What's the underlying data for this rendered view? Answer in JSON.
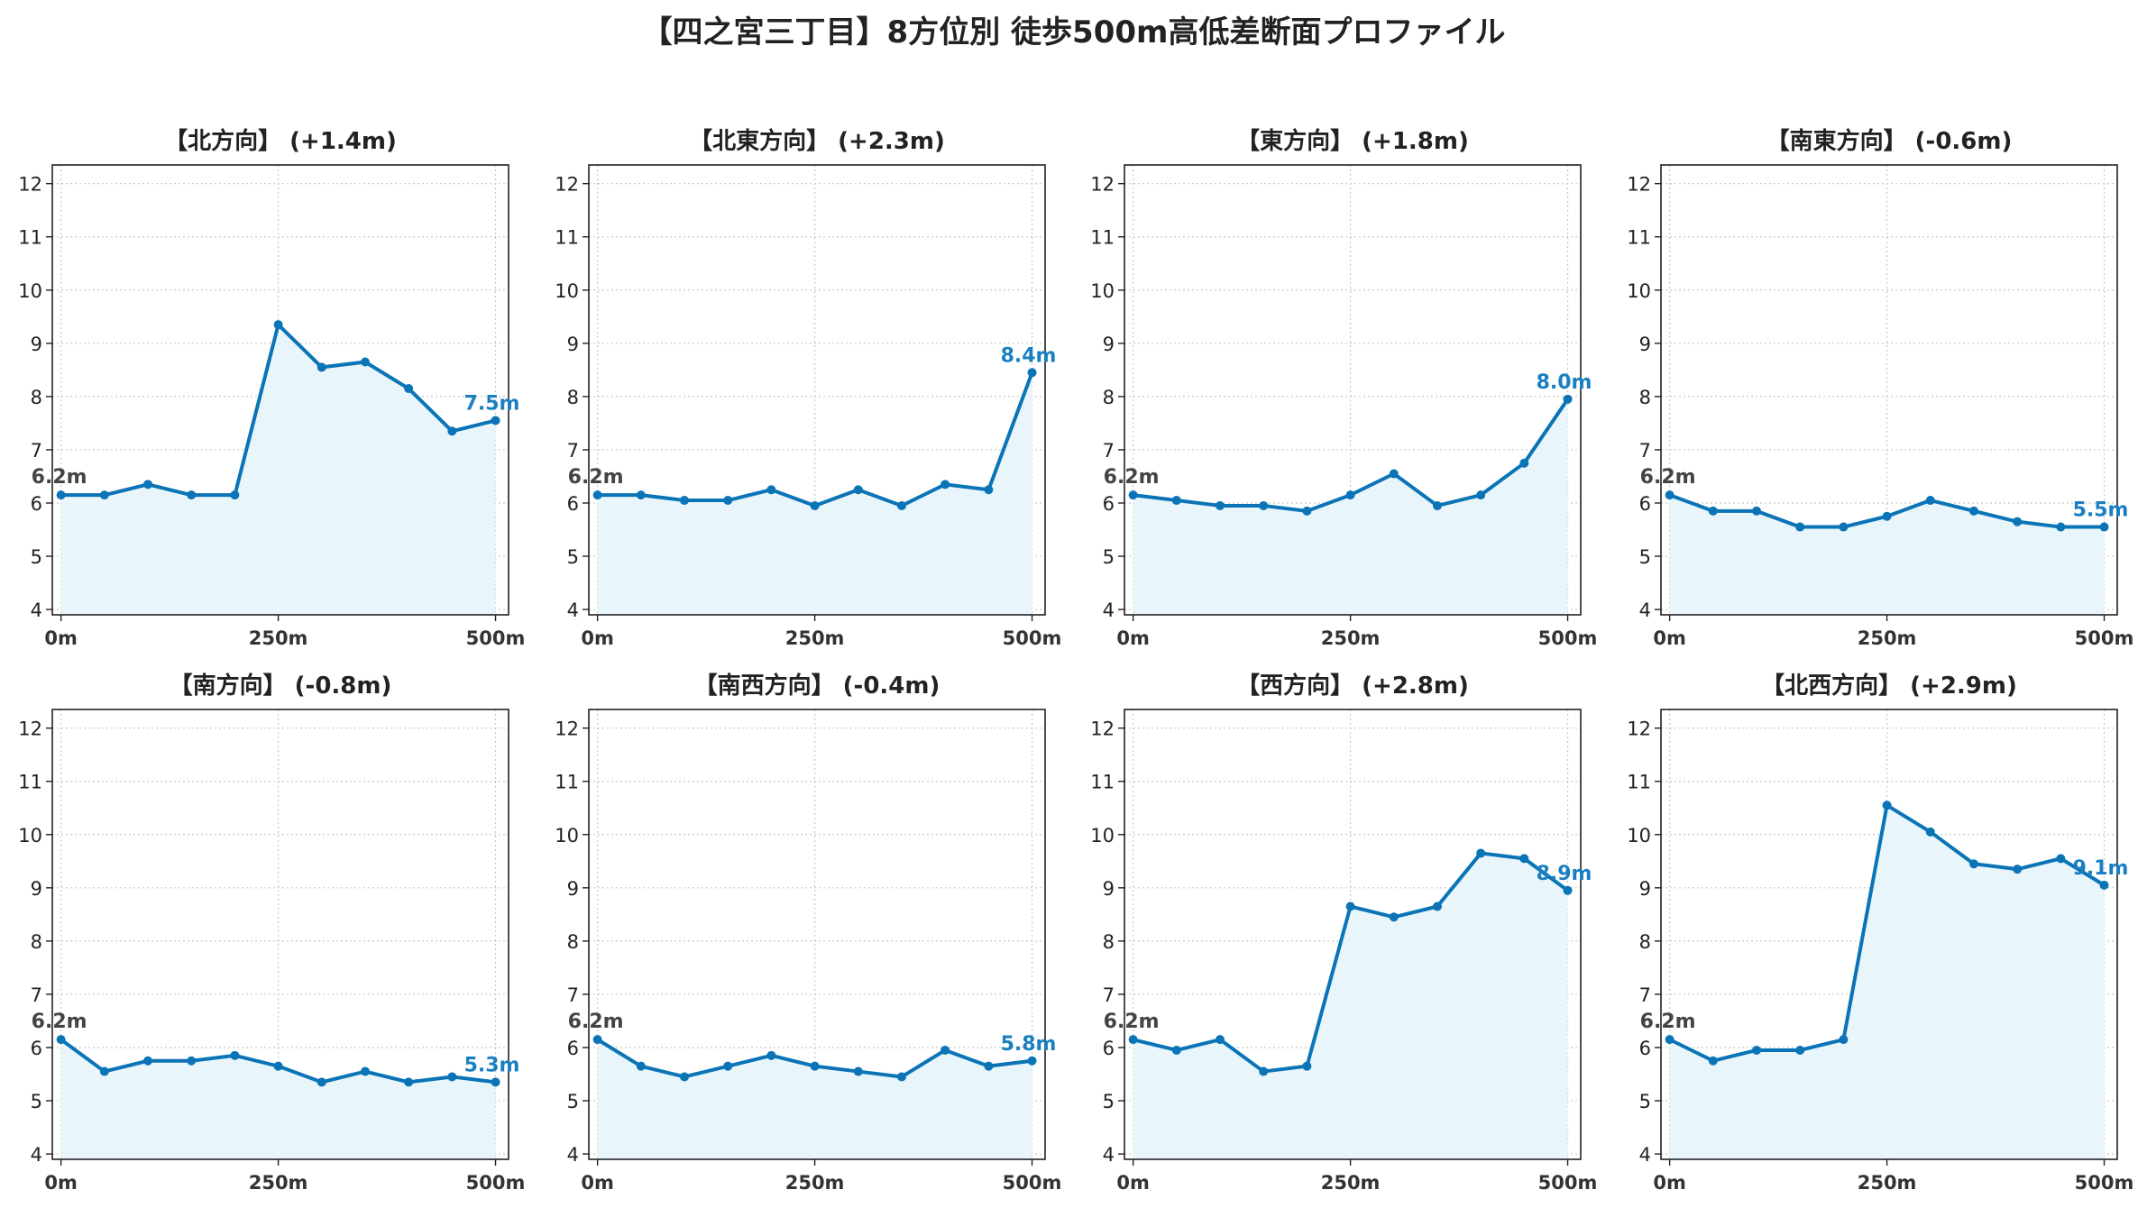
{
  "title": "【四之宮三丁目】8方位別 徒歩500m高低差断面プロファイル",
  "colors": {
    "line": "#0a74b6",
    "fill": "#e8f5fb",
    "start_label": "#444444",
    "end_label": "#1a7fc0",
    "grid": "#c8c8c8",
    "axis": "#222222"
  },
  "chart_data": [
    {
      "type": "line",
      "title": "【北方向】 (+1.4m)",
      "x": [
        0,
        50,
        100,
        150,
        200,
        250,
        300,
        350,
        400,
        450,
        500
      ],
      "y": [
        6.15,
        6.15,
        6.35,
        6.15,
        6.15,
        9.35,
        8.55,
        8.65,
        8.15,
        7.35,
        7.55
      ],
      "start_label": "6.2m",
      "end_label": "7.5m",
      "xticks": [
        "0m",
        "250m",
        "500m"
      ],
      "yticks": [
        4,
        5,
        6,
        7,
        8,
        9,
        10,
        11,
        12
      ],
      "xlim": [
        -10,
        515
      ],
      "ylim": [
        3.9,
        12.35
      ],
      "grid": true,
      "fill": true
    },
    {
      "type": "line",
      "title": "【北東方向】 (+2.3m)",
      "x": [
        0,
        50,
        100,
        150,
        200,
        250,
        300,
        350,
        400,
        450,
        500
      ],
      "y": [
        6.15,
        6.15,
        6.05,
        6.05,
        6.25,
        5.95,
        6.25,
        5.95,
        6.35,
        6.25,
        8.45
      ],
      "start_label": "6.2m",
      "end_label": "8.4m",
      "xticks": [
        "0m",
        "250m",
        "500m"
      ],
      "yticks": [
        4,
        5,
        6,
        7,
        8,
        9,
        10,
        11,
        12
      ],
      "xlim": [
        -10,
        515
      ],
      "ylim": [
        3.9,
        12.35
      ],
      "grid": true,
      "fill": true
    },
    {
      "type": "line",
      "title": "【東方向】 (+1.8m)",
      "x": [
        0,
        50,
        100,
        150,
        200,
        250,
        300,
        350,
        400,
        450,
        500
      ],
      "y": [
        6.15,
        6.05,
        5.95,
        5.95,
        5.85,
        6.15,
        6.55,
        5.95,
        6.15,
        6.75,
        7.95
      ],
      "start_label": "6.2m",
      "end_label": "8.0m",
      "xticks": [
        "0m",
        "250m",
        "500m"
      ],
      "yticks": [
        4,
        5,
        6,
        7,
        8,
        9,
        10,
        11,
        12
      ],
      "xlim": [
        -10,
        515
      ],
      "ylim": [
        3.9,
        12.35
      ],
      "grid": true,
      "fill": true
    },
    {
      "type": "line",
      "title": "【南東方向】 (-0.6m)",
      "x": [
        0,
        50,
        100,
        150,
        200,
        250,
        300,
        350,
        400,
        450,
        500
      ],
      "y": [
        6.15,
        5.85,
        5.85,
        5.55,
        5.55,
        5.75,
        6.05,
        5.85,
        5.65,
        5.55,
        5.55
      ],
      "start_label": "6.2m",
      "end_label": "5.5m",
      "xticks": [
        "0m",
        "250m",
        "500m"
      ],
      "yticks": [
        4,
        5,
        6,
        7,
        8,
        9,
        10,
        11,
        12
      ],
      "xlim": [
        -10,
        515
      ],
      "ylim": [
        3.9,
        12.35
      ],
      "grid": true,
      "fill": true
    },
    {
      "type": "line",
      "title": "【南方向】 (-0.8m)",
      "x": [
        0,
        50,
        100,
        150,
        200,
        250,
        300,
        350,
        400,
        450,
        500
      ],
      "y": [
        6.15,
        5.55,
        5.75,
        5.75,
        5.85,
        5.65,
        5.35,
        5.55,
        5.35,
        5.45,
        5.35
      ],
      "start_label": "6.2m",
      "end_label": "5.3m",
      "xticks": [
        "0m",
        "250m",
        "500m"
      ],
      "yticks": [
        4,
        5,
        6,
        7,
        8,
        9,
        10,
        11,
        12
      ],
      "xlim": [
        -10,
        515
      ],
      "ylim": [
        3.9,
        12.35
      ],
      "grid": true,
      "fill": true
    },
    {
      "type": "line",
      "title": "【南西方向】 (-0.4m)",
      "x": [
        0,
        50,
        100,
        150,
        200,
        250,
        300,
        350,
        400,
        450,
        500
      ],
      "y": [
        6.15,
        5.65,
        5.45,
        5.65,
        5.85,
        5.65,
        5.55,
        5.45,
        5.95,
        5.65,
        5.75
      ],
      "start_label": "6.2m",
      "end_label": "5.8m",
      "xticks": [
        "0m",
        "250m",
        "500m"
      ],
      "yticks": [
        4,
        5,
        6,
        7,
        8,
        9,
        10,
        11,
        12
      ],
      "xlim": [
        -10,
        515
      ],
      "ylim": [
        3.9,
        12.35
      ],
      "grid": true,
      "fill": true
    },
    {
      "type": "line",
      "title": "【西方向】 (+2.8m)",
      "x": [
        0,
        50,
        100,
        150,
        200,
        250,
        300,
        350,
        400,
        450,
        500
      ],
      "y": [
        6.15,
        5.95,
        6.15,
        5.55,
        5.65,
        8.65,
        8.45,
        8.65,
        9.65,
        9.55,
        8.95
      ],
      "start_label": "6.2m",
      "end_label": "8.9m",
      "xticks": [
        "0m",
        "250m",
        "500m"
      ],
      "yticks": [
        4,
        5,
        6,
        7,
        8,
        9,
        10,
        11,
        12
      ],
      "xlim": [
        -10,
        515
      ],
      "ylim": [
        3.9,
        12.35
      ],
      "grid": true,
      "fill": true
    },
    {
      "type": "line",
      "title": "【北西方向】 (+2.9m)",
      "x": [
        0,
        50,
        100,
        150,
        200,
        250,
        300,
        350,
        400,
        450,
        500
      ],
      "y": [
        6.15,
        5.75,
        5.95,
        5.95,
        6.15,
        10.55,
        10.05,
        9.45,
        9.35,
        9.55,
        9.05
      ],
      "start_label": "6.2m",
      "end_label": "9.1m",
      "xticks": [
        "0m",
        "250m",
        "500m"
      ],
      "yticks": [
        4,
        5,
        6,
        7,
        8,
        9,
        10,
        11,
        12
      ],
      "xlim": [
        -10,
        515
      ],
      "ylim": [
        3.9,
        12.35
      ],
      "grid": true,
      "fill": true
    }
  ]
}
